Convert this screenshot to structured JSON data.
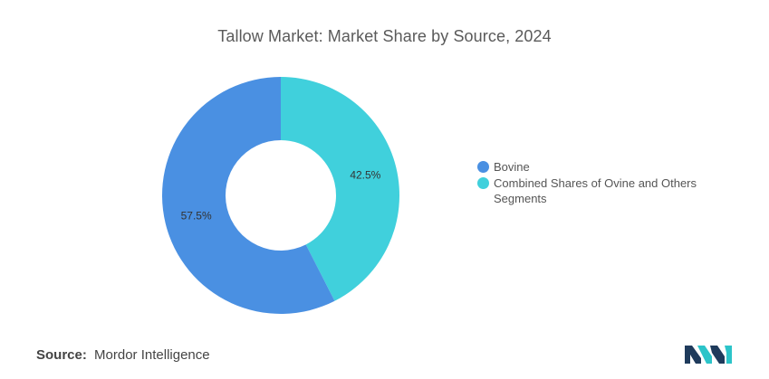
{
  "chart_data": {
    "type": "pie",
    "title": "Tallow Market: Market Share by Source, 2024",
    "series": [
      {
        "name": "Bovine",
        "value": 57.5,
        "label": "57.5%",
        "color": "#4a90e2"
      },
      {
        "name": "Combined Shares of Ovine and Others Segments",
        "value": 42.5,
        "label": "42.5%",
        "color": "#40d0dc"
      }
    ],
    "legend_position": "right",
    "donut": true
  },
  "footer": {
    "source_key": "Source:",
    "source_value": "Mordor Intelligence"
  },
  "logo": {
    "icon": "mordor-intelligence-logo-icon",
    "colors": [
      "#1f3b5c",
      "#2cc4c9"
    ]
  }
}
